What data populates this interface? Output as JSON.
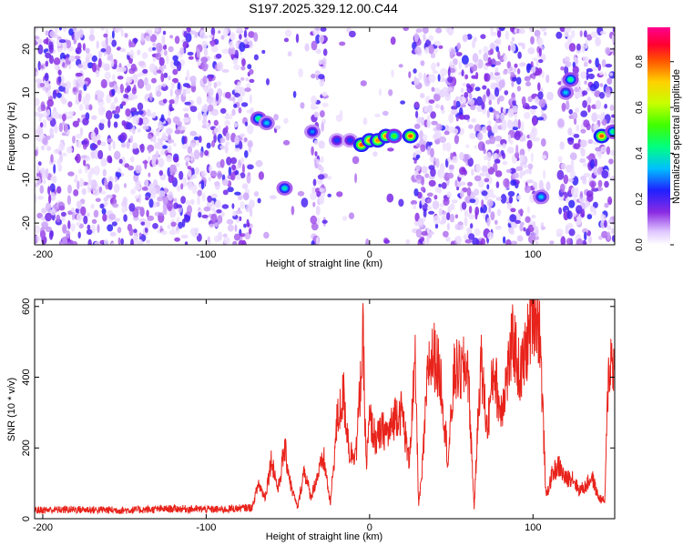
{
  "title": "S197.2025.329.12.00.C44",
  "top_panel": {
    "type": "heatmap",
    "xlabel": "Height of straight line (km)",
    "ylabel": "Frequency (Hz)",
    "xlim": [
      -205,
      150
    ],
    "ylim": [
      -25,
      25
    ],
    "x_ticks": [
      -200,
      -100,
      0,
      100
    ],
    "y_ticks": [
      -20,
      -10,
      0,
      10,
      20
    ],
    "colorbar_label": "Normalized spectral amplitude",
    "colorbar_range": [
      0,
      0.95
    ],
    "colorbar_ticks": [
      "0.0",
      "0.2",
      "0.4",
      "0.6",
      "0.8"
    ],
    "empty_bands": [
      [
        -72,
        -35
      ],
      [
        -27,
        27
      ],
      [
        108,
        116
      ]
    ],
    "peaks": [
      {
        "x": -68,
        "y": 4,
        "amp": 0.5
      },
      {
        "x": -63,
        "y": 3,
        "amp": 0.4
      },
      {
        "x": -52,
        "y": -12,
        "amp": 0.45
      },
      {
        "x": -35,
        "y": 1,
        "amp": 0.35
      },
      {
        "x": -20,
        "y": -1,
        "amp": 0.3
      },
      {
        "x": -12,
        "y": -1,
        "amp": 0.3
      },
      {
        "x": -5,
        "y": -2,
        "amp": 0.95
      },
      {
        "x": 0,
        "y": -1,
        "amp": 0.9
      },
      {
        "x": 5,
        "y": -1,
        "amp": 0.9
      },
      {
        "x": 10,
        "y": 0,
        "amp": 0.9
      },
      {
        "x": 15,
        "y": 0,
        "amp": 0.6
      },
      {
        "x": 25,
        "y": 0,
        "amp": 0.95
      },
      {
        "x": 105,
        "y": -14,
        "amp": 0.4
      },
      {
        "x": 120,
        "y": 10,
        "amp": 0.4
      },
      {
        "x": 123,
        "y": 13,
        "amp": 0.5
      },
      {
        "x": 142,
        "y": 0,
        "amp": 0.95
      },
      {
        "x": 149,
        "y": 1,
        "amp": 0.5
      }
    ]
  },
  "bottom_panel": {
    "type": "line",
    "xlabel": "Height of straight line (km)",
    "ylabel": "SNR (10 * v/v)",
    "xlim": [
      -205,
      150
    ],
    "ylim": [
      0,
      620
    ],
    "x_ticks": [
      -200,
      -100,
      0,
      100
    ],
    "y_ticks": [
      0,
      200,
      400,
      600
    ],
    "line_color": "#e8231b",
    "chart_data": {
      "type": "line",
      "x": [
        -205,
        -180,
        -150,
        -120,
        -90,
        -72,
        -68,
        -64,
        -60,
        -56,
        -52,
        -48,
        -44,
        -40,
        -36,
        -32,
        -28,
        -24,
        -20,
        -16,
        -12,
        -8,
        -4,
        -2,
        0,
        4,
        8,
        12,
        16,
        20,
        24,
        28,
        30,
        32,
        36,
        40,
        44,
        48,
        52,
        56,
        60,
        64,
        68,
        72,
        76,
        80,
        84,
        88,
        92,
        96,
        100,
        104,
        108,
        112,
        116,
        120,
        124,
        128,
        132,
        136,
        140,
        144,
        146,
        148,
        150
      ],
      "y": [
        20,
        22,
        20,
        24,
        22,
        28,
        100,
        60,
        170,
        80,
        200,
        90,
        30,
        140,
        60,
        120,
        170,
        40,
        270,
        350,
        180,
        200,
        500,
        150,
        280,
        220,
        250,
        240,
        300,
        300,
        160,
        430,
        40,
        120,
        440,
        460,
        380,
        160,
        420,
        410,
        440,
        30,
        450,
        250,
        430,
        300,
        400,
        510,
        400,
        480,
        600,
        550,
        60,
        130,
        150,
        110,
        120,
        80,
        90,
        120,
        60,
        50,
        400,
        460,
        420
      ]
    }
  }
}
